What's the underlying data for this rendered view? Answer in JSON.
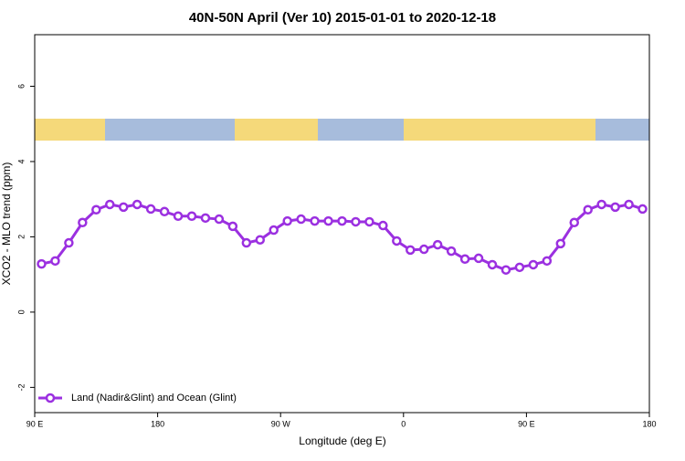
{
  "chart_data": {
    "type": "line",
    "title": "40N-50N April (Ver 10)   2015-01-01 to 2020-12-18",
    "x_label": "Longitude (deg E)",
    "y_label": "XCO2 - MLO trend (ppm)",
    "x": [
      95,
      105,
      115,
      125,
      135,
      145,
      155,
      165,
      175,
      185,
      195,
      205,
      215,
      225,
      235,
      245,
      255,
      265,
      275,
      285,
      295,
      305,
      315,
      325,
      335,
      345,
      355,
      365,
      375,
      385,
      395,
      405,
      415,
      425,
      435,
      445,
      455,
      465,
      475,
      485,
      495,
      505,
      515,
      525,
      535
    ],
    "series": [
      {
        "name": "Land (Nadir&Glint) and Ocean (Glint)",
        "color": "#9b30e0",
        "values": [
          1.28,
          1.36,
          1.84,
          2.38,
          2.72,
          2.86,
          2.79,
          2.86,
          2.74,
          2.67,
          2.55,
          2.55,
          2.5,
          2.47,
          2.28,
          1.84,
          1.92,
          2.18,
          2.42,
          2.47,
          2.42,
          2.42,
          2.42,
          2.4,
          2.4,
          2.3,
          1.89,
          1.65,
          1.67,
          1.79,
          1.62,
          1.41,
          1.43,
          1.26,
          1.12,
          1.19,
          1.26,
          1.36,
          1.82,
          2.38,
          2.72,
          2.86,
          2.79,
          2.86,
          2.74
        ]
      }
    ],
    "xlim": [
      90,
      540
    ],
    "xticks": [
      {
        "value": 90,
        "label": "90 E"
      },
      180,
      {
        "value": 270,
        "label": "90 W"
      },
      {
        "value": 360,
        "label": "0"
      },
      {
        "value": 450,
        "label": "90 E"
      },
      {
        "value": 540,
        "label": "180"
      }
    ],
    "ylim": [
      -2.67,
      7.37
    ],
    "yticks": [
      -2,
      0,
      2,
      4,
      6
    ],
    "legend": "bottom-left"
  }
}
